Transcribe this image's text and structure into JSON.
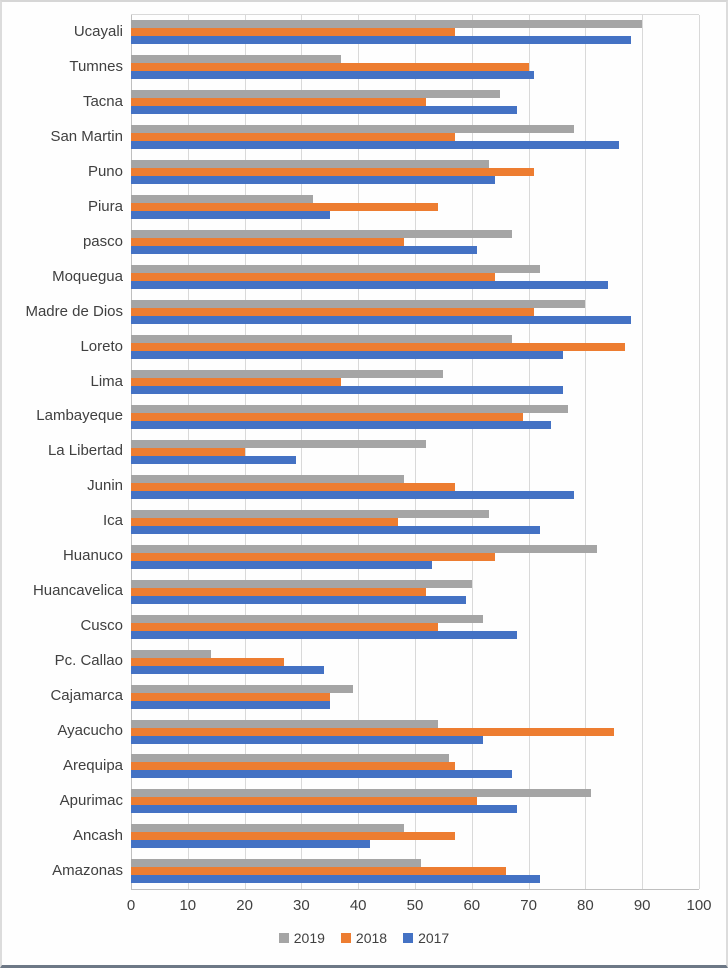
{
  "chart_data": {
    "type": "bar",
    "orientation": "horizontal",
    "categories": [
      "Ucayali",
      "Tumnes",
      "Tacna",
      "San Martin",
      "Puno",
      "Piura",
      "pasco",
      "Moquegua",
      "Madre de Dios",
      "Loreto",
      "Lima",
      "Lambayeque",
      "La Libertad",
      "Junin",
      "Ica",
      "Huanuco",
      "Huancavelica",
      "Cusco",
      "Pc. Callao",
      "Cajamarca",
      "Ayacucho",
      "Arequipa",
      "Apurimac",
      "Ancash",
      "Amazonas"
    ],
    "series": [
      {
        "name": "2019",
        "color": "#A5A5A5",
        "values": [
          90,
          37,
          65,
          78,
          63,
          32,
          67,
          72,
          80,
          67,
          55,
          77,
          52,
          48,
          63,
          82,
          60,
          62,
          14,
          39,
          54,
          56,
          81,
          48,
          51
        ]
      },
      {
        "name": "2018",
        "color": "#ED7D31",
        "values": [
          57,
          70,
          52,
          57,
          71,
          54,
          48,
          64,
          71,
          87,
          37,
          69,
          20,
          57,
          47,
          64,
          52,
          54,
          27,
          35,
          85,
          57,
          61,
          57,
          66
        ]
      },
      {
        "name": "2017",
        "color": "#4472C4",
        "values": [
          88,
          71,
          68,
          86,
          64,
          35,
          61,
          84,
          88,
          76,
          76,
          74,
          29,
          78,
          72,
          53,
          59,
          68,
          34,
          35,
          62,
          67,
          68,
          42,
          72
        ]
      }
    ],
    "xlim": [
      0,
      100
    ],
    "xticks": [
      0,
      10,
      20,
      30,
      40,
      50,
      60,
      70,
      80,
      90,
      100
    ],
    "grid": true,
    "legend_position": "bottom",
    "title": "",
    "xlabel": "",
    "ylabel": ""
  },
  "colors": {
    "gridline": "#D9D9D9",
    "axis_line": "#BFBFBF",
    "text": "#404040",
    "background": "#FEFEFE",
    "frame_border": "#D6D6D6",
    "frame_border_bottom": "#6D7886"
  }
}
